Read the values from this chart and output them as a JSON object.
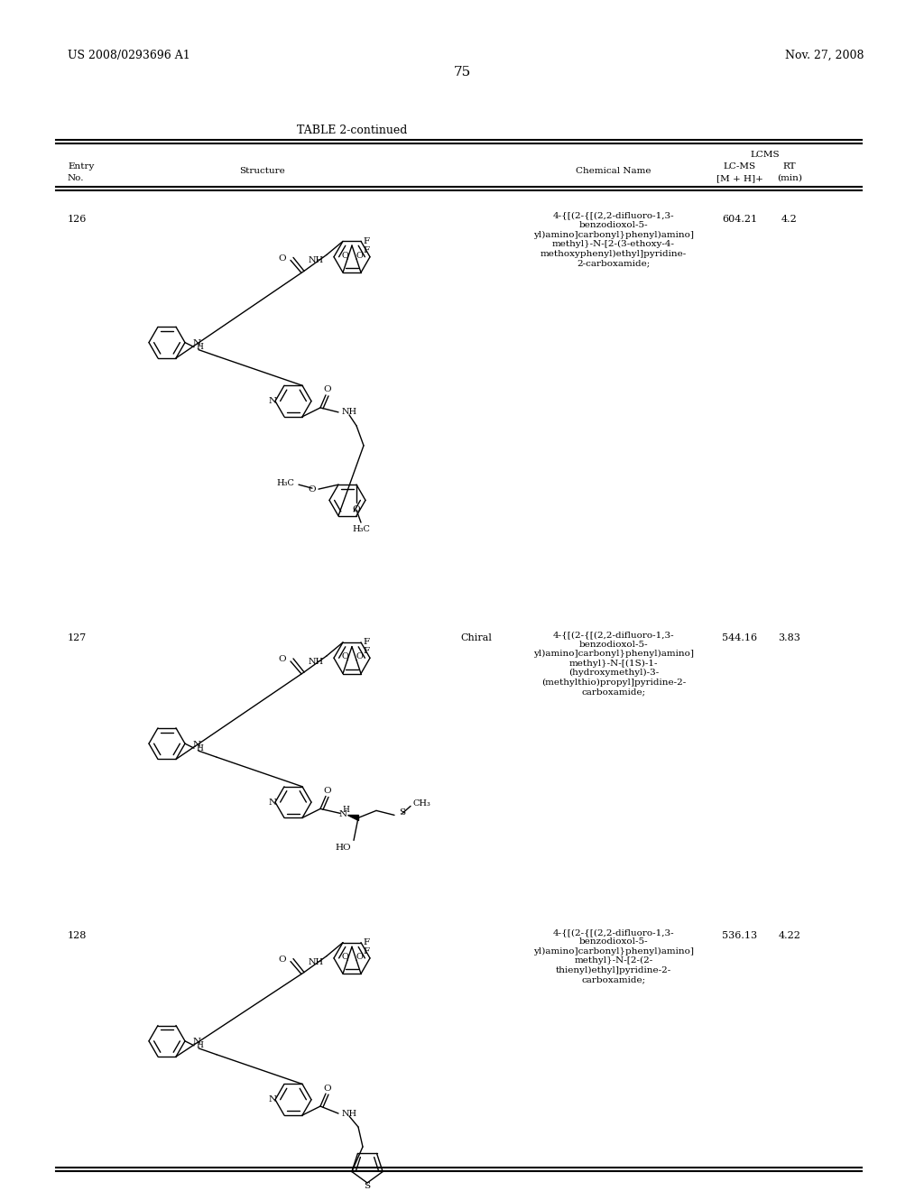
{
  "page_number": "75",
  "patent_number": "US 2008/0293696 A1",
  "patent_date": "Nov. 27, 2008",
  "table_title": "TABLE 2-continued",
  "background_color": "#ffffff",
  "entries": [
    {
      "entry_no": "126",
      "chemical_name": "4-{[(2-{[(2,2-difluoro-1,3-\nbenzodioxol-5-\nyl)amino]carbonyl}phenyl)amino]\nmethyl}-N-[2-(3-ethoxy-4-\nmethoxyphenyl)ethyl]pyridine-\n2-carboxamide;",
      "lcms": "604.21",
      "rt": "4.2",
      "chiral": ""
    },
    {
      "entry_no": "127",
      "chemical_name": "4-{[(2-{[(2,2-difluoro-1,3-\nbenzodioxol-5-\nyl)amino]carbonyl}phenyl)amino]\nmethyl}-N-[(1S)-1-\n(hydroxymethyl)-3-\n(methylthio)propyl]pyridine-2-\ncarboxamide;",
      "lcms": "544.16",
      "rt": "3.83",
      "chiral": "Chiral"
    },
    {
      "entry_no": "128",
      "chemical_name": "4-{[(2-{[(2,2-difluoro-1,3-\nbenzodioxol-5-\nyl)amino]carbonyl}phenyl)amino]\nmethyl}-N-[2-(2-\nthienyl)ethyl]pyridine-2-\ncarboxamide;",
      "lcms": "536.13",
      "rt": "4.22",
      "chiral": ""
    }
  ]
}
